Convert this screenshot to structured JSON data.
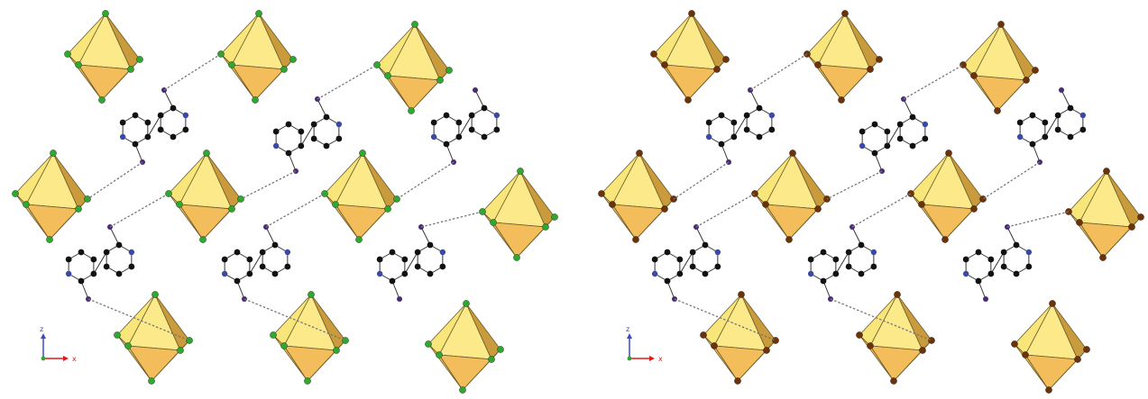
{
  "panels": [
    {
      "id": "left",
      "halide_color": "#2ea82e",
      "axes": {
        "vertical": "z",
        "horizontal": "x"
      }
    },
    {
      "id": "right",
      "halide_color": "#6e3208",
      "axes": {
        "vertical": "z",
        "horizontal": "x"
      }
    }
  ],
  "colors": {
    "octa_light": "#f8e67a",
    "octa_mid": "#f0c15e",
    "octa_dark": "#c99b3c",
    "octa_shadow": "#8c6a28",
    "carbon": "#111111",
    "nitrogen": "#3a48a6",
    "iodine": "#4a2a78",
    "hbond": "#777777",
    "axis_z": "#3a48c8",
    "axis_x": "#e01818",
    "axis_origin": "#2ea82e"
  }
}
